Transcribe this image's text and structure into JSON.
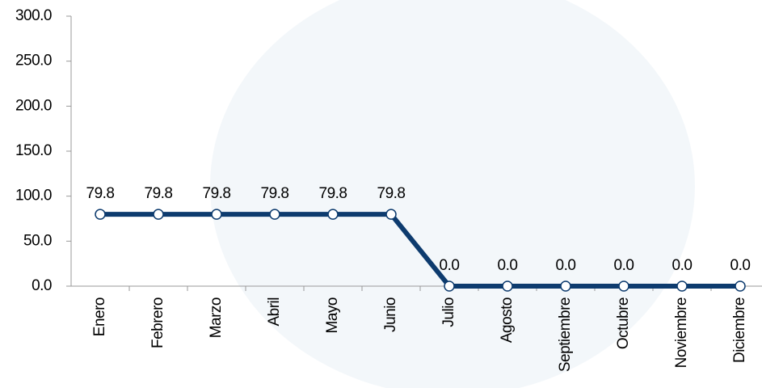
{
  "chart_data": {
    "type": "line",
    "categories": [
      "Enero",
      "Febrero",
      "Marzo",
      "Abril",
      "Mayo",
      "Junio",
      "Julio",
      "Agosto",
      "Septiembre",
      "Octubre",
      "Noviembre",
      "Diciembre"
    ],
    "series": [
      {
        "color": "#0d3b6e",
        "values": [
          79.8,
          79.8,
          79.8,
          79.8,
          79.8,
          79.8,
          0,
          0,
          0,
          0,
          0,
          0
        ],
        "value_labels": [
          "79.8",
          "79.8",
          "79.8",
          "79.8",
          "79.8",
          "79.8",
          "0.0",
          "0.0",
          "0.0",
          "0.0",
          "0.0",
          "0.0"
        ]
      }
    ],
    "ylim": [
      0,
      300
    ],
    "yticks": [
      {
        "value": 0,
        "label": "0.0"
      },
      {
        "value": 50,
        "label": "50.0"
      },
      {
        "value": 100,
        "label": "100.0"
      },
      {
        "value": 150,
        "label": "150.0"
      },
      {
        "value": 200,
        "label": "200.0"
      },
      {
        "value": 250,
        "label": "250.0"
      },
      {
        "value": 300,
        "label": "300.0"
      }
    ],
    "grid": false
  }
}
